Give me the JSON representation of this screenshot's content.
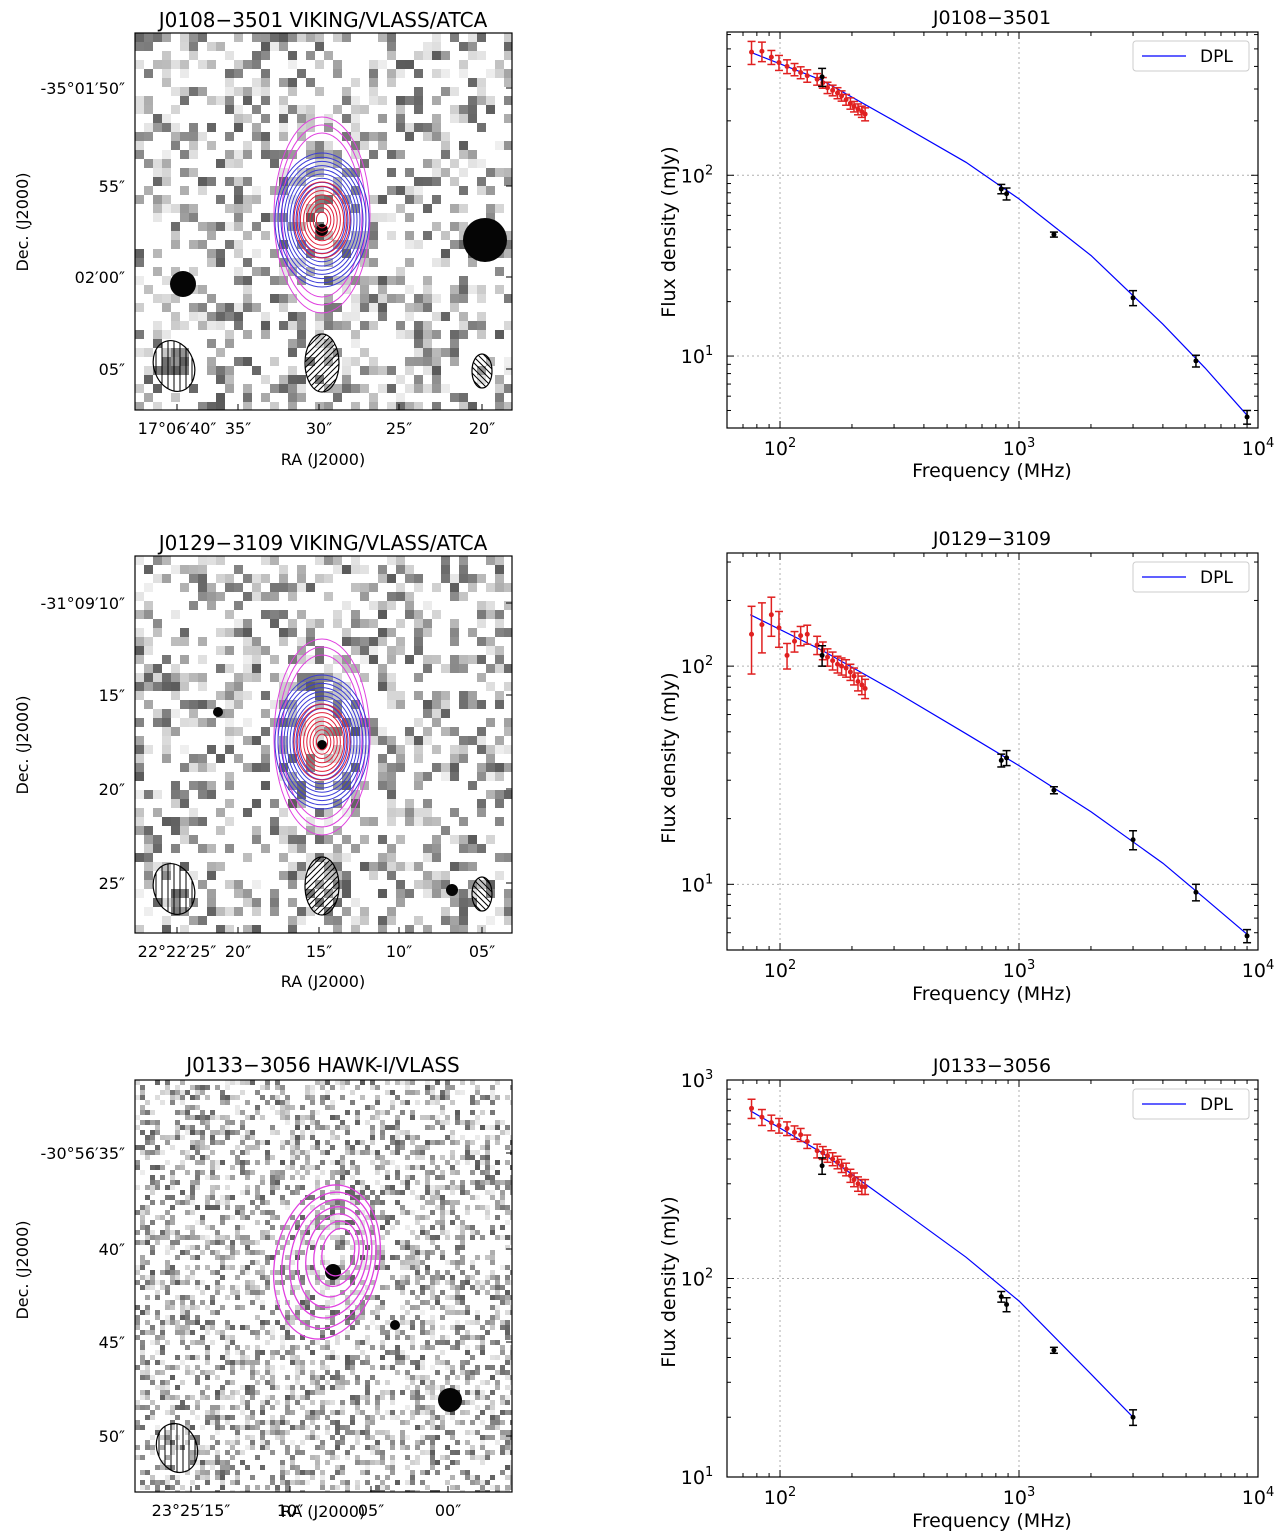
{
  "image_panels": [
    {
      "title": "J0108−3501 VIKING/VLASS/ATCA",
      "xlabel": "RA (J2000)",
      "ylabel": "Dec. (J2000)",
      "ra_ticks": [
        "17°06′40″",
        "35″",
        "30″",
        "25″",
        "20″"
      ],
      "dec_ticks": [
        "-35°01′50″",
        "55″",
        "02′00″",
        "05″"
      ],
      "contour_colors": [
        "#e040e0",
        "#3a3ad8",
        "#e0203a"
      ],
      "beam_count": 3
    },
    {
      "title": "J0129−3109 VIKING/VLASS/ATCA",
      "xlabel": "RA (J2000)",
      "ylabel": "Dec. (J2000)",
      "ra_ticks": [
        "22°22′25″",
        "20″",
        "15″",
        "10″",
        "05″"
      ],
      "dec_ticks": [
        "-31°09′10″",
        "15″",
        "20″",
        "25″"
      ],
      "contour_colors": [
        "#e040e0",
        "#3a3ad8",
        "#e0203a"
      ],
      "beam_count": 3
    },
    {
      "title": "J0133−3056 HAWK-I/VLASS",
      "xlabel": "RA (J2000)",
      "ylabel": "Dec. (J2000)",
      "ra_ticks": [
        "23°25′15″",
        "10″",
        "05″",
        "00″"
      ],
      "dec_ticks": [
        "-30°56′35″",
        "40″",
        "45″",
        "50″"
      ],
      "contour_colors": [
        "#e040e0"
      ],
      "beam_count": 1
    }
  ],
  "chart_data": [
    {
      "type": "scatter",
      "title": "J0108−3501",
      "xlabel": "Frequency (MHz)",
      "ylabel": "Flux density (mJy)",
      "xscale": "log",
      "yscale": "log",
      "xlim": [
        60,
        10000
      ],
      "ylim": [
        4,
        620
      ],
      "xticks": [
        "10^2",
        "10^3",
        "10^4"
      ],
      "yticks": [
        "10^1",
        "10^2"
      ],
      "grid": true,
      "legend": {
        "position": "top-right",
        "entries": [
          "DPL"
        ]
      },
      "fit_color": "#0000ff",
      "series": [
        {
          "color": "#e02020",
          "points": [
            [
              76,
              480,
              70
            ],
            [
              84,
              485,
              60
            ],
            [
              92,
              450,
              40
            ],
            [
              99,
              420,
              40
            ],
            [
              107,
              400,
              35
            ],
            [
              115,
              385,
              30
            ],
            [
              122,
              370,
              28
            ],
            [
              130,
              355,
              28
            ],
            [
              143,
              340,
              25
            ],
            [
              151,
              325,
              22
            ],
            [
              158,
              305,
              22
            ],
            [
              166,
              295,
              20
            ],
            [
              174,
              285,
              20
            ],
            [
              181,
              275,
              18
            ],
            [
              189,
              262,
              18
            ],
            [
              197,
              250,
              18
            ],
            [
              204,
              240,
              16
            ],
            [
              212,
              232,
              16
            ],
            [
              220,
              225,
              16
            ],
            [
              227,
              218,
              18
            ]
          ]
        },
        {
          "color": "#000000",
          "points": [
            [
              150,
              350,
              40
            ],
            [
              843,
              84,
              5
            ],
            [
              887,
              79,
              6
            ],
            [
              1400,
              47,
              1.5
            ],
            [
              3000,
              21,
              2
            ],
            [
              5500,
              9.4,
              0.7
            ],
            [
              9000,
              4.6,
              0.4
            ]
          ]
        }
      ],
      "fit": [
        [
          75,
          480
        ],
        [
          150,
          335
        ],
        [
          300,
          200
        ],
        [
          600,
          118
        ],
        [
          1000,
          74
        ],
        [
          2000,
          36
        ],
        [
          4000,
          15
        ],
        [
          6000,
          8.6
        ],
        [
          9000,
          4.7
        ]
      ]
    },
    {
      "type": "scatter",
      "title": "J0129−3109",
      "xlabel": "Frequency (MHz)",
      "ylabel": "Flux density (mJy)",
      "xscale": "log",
      "yscale": "log",
      "xlim": [
        60,
        10000
      ],
      "ylim": [
        5,
        330
      ],
      "xticks": [
        "10^2",
        "10^3",
        "10^4"
      ],
      "yticks": [
        "10^1",
        "10^2"
      ],
      "grid": true,
      "legend": {
        "position": "top-right",
        "entries": [
          "DPL"
        ]
      },
      "fit_color": "#0000ff",
      "series": [
        {
          "color": "#e02020",
          "points": [
            [
              76,
              140,
              48
            ],
            [
              84,
              155,
              40
            ],
            [
              92,
              172,
              35
            ],
            [
              99,
              150,
              28
            ],
            [
              107,
              112,
              15
            ],
            [
              115,
              130,
              14
            ],
            [
              122,
              138,
              14
            ],
            [
              130,
              140,
              14
            ],
            [
              143,
              125,
              12
            ],
            [
              151,
              118,
              11
            ],
            [
              158,
              110,
              10
            ],
            [
              166,
              106,
              10
            ],
            [
              174,
              102,
              9
            ],
            [
              181,
              100,
              9
            ],
            [
              189,
              98,
              9
            ],
            [
              197,
              94,
              8
            ],
            [
              204,
              90,
              8
            ],
            [
              212,
              85,
              8
            ],
            [
              220,
              82,
              8
            ],
            [
              227,
              79,
              8
            ]
          ]
        },
        {
          "color": "#000000",
          "points": [
            [
              150,
              112,
              12
            ],
            [
              843,
              37,
              2.5
            ],
            [
              887,
              38,
              3
            ],
            [
              1400,
              27,
              1
            ],
            [
              3000,
              16,
              1.6
            ],
            [
              5500,
              9.2,
              0.8
            ],
            [
              9000,
              5.8,
              0.4
            ]
          ]
        }
      ],
      "fit": [
        [
          75,
          172
        ],
        [
          150,
          118
        ],
        [
          300,
          77
        ],
        [
          600,
          49
        ],
        [
          1000,
          35
        ],
        [
          2000,
          21.5
        ],
        [
          4000,
          12.5
        ],
        [
          6000,
          8.6
        ],
        [
          9000,
          5.9
        ]
      ]
    },
    {
      "type": "scatter",
      "title": "J0133−3056",
      "xlabel": "Frequency (MHz)",
      "ylabel": "Flux density (mJy)",
      "xscale": "log",
      "yscale": "log",
      "xlim": [
        60,
        10000
      ],
      "ylim": [
        10,
        1000
      ],
      "xticks": [
        "10^2",
        "10^3",
        "10^4"
      ],
      "yticks": [
        "10^1",
        "10^2",
        "10^3"
      ],
      "grid": true,
      "legend": {
        "position": "top-right",
        "entries": [
          "DPL"
        ]
      },
      "fit_color": "#0000ff",
      "series": [
        {
          "color": "#e02020",
          "points": [
            [
              76,
              720,
              80
            ],
            [
              84,
              650,
              60
            ],
            [
              92,
              610,
              55
            ],
            [
              99,
              590,
              50
            ],
            [
              107,
              570,
              45
            ],
            [
              115,
              545,
              42
            ],
            [
              122,
              530,
              40
            ],
            [
              130,
              490,
              38
            ],
            [
              143,
              440,
              35
            ],
            [
              151,
              430,
              32
            ],
            [
              158,
              415,
              30
            ],
            [
              166,
              400,
              30
            ],
            [
              174,
              385,
              28
            ],
            [
              181,
              370,
              28
            ],
            [
              189,
              355,
              26
            ],
            [
              197,
              330,
              25
            ],
            [
              204,
              315,
              25
            ],
            [
              212,
              300,
              25
            ],
            [
              220,
              290,
              25
            ],
            [
              227,
              290,
              25
            ]
          ]
        },
        {
          "color": "#000000",
          "points": [
            [
              150,
              370,
              35
            ],
            [
              843,
              81,
              5
            ],
            [
              887,
              74,
              6
            ],
            [
              1400,
              43.5,
              1.5
            ],
            [
              3000,
              20,
              1.8
            ]
          ]
        }
      ],
      "fit": [
        [
          75,
          700
        ],
        [
          150,
          430
        ],
        [
          300,
          235
        ],
        [
          600,
          128
        ],
        [
          1000,
          77
        ],
        [
          2000,
          33
        ],
        [
          3000,
          20
        ]
      ]
    }
  ]
}
